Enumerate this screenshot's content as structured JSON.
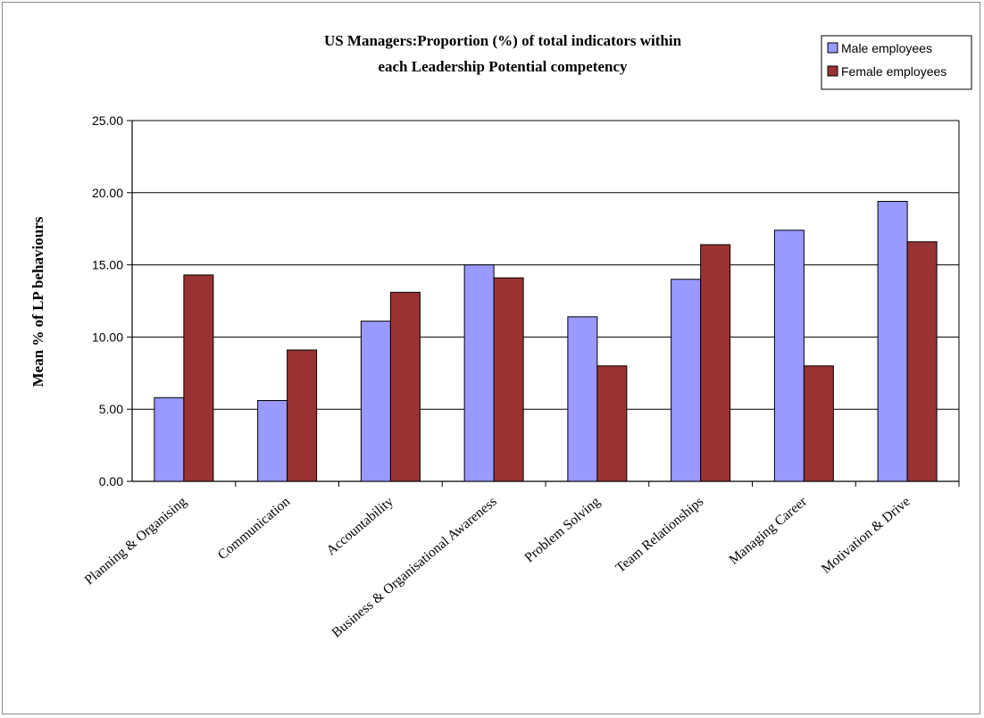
{
  "chart_data": {
    "type": "bar",
    "title": [
      "US Managers:Proportion (%) of total indicators within",
      "each Leadership Potential competency"
    ],
    "xlabel": "",
    "ylabel": "Mean % of LP behaviours",
    "ylim": [
      0,
      25
    ],
    "yticks": [
      "0.00",
      "5.00",
      "10.00",
      "15.00",
      "20.00",
      "25.00"
    ],
    "grid": true,
    "legend_position": "top-right",
    "categories": [
      "Planning & Organising",
      "Communication",
      "Accountability",
      "Business & Organisational Awareness",
      "Problem Solving",
      "Team Relationships",
      "Managing Career",
      "Motivation & Drive"
    ],
    "series": [
      {
        "name": "Male employees",
        "color": "#9999ff",
        "values": [
          5.8,
          5.6,
          11.1,
          15.0,
          11.4,
          14.0,
          17.4,
          19.4
        ]
      },
      {
        "name": "Female employees",
        "color": "#993333",
        "values": [
          14.3,
          9.1,
          13.1,
          14.1,
          8.0,
          16.4,
          8.0,
          16.6
        ]
      }
    ]
  }
}
